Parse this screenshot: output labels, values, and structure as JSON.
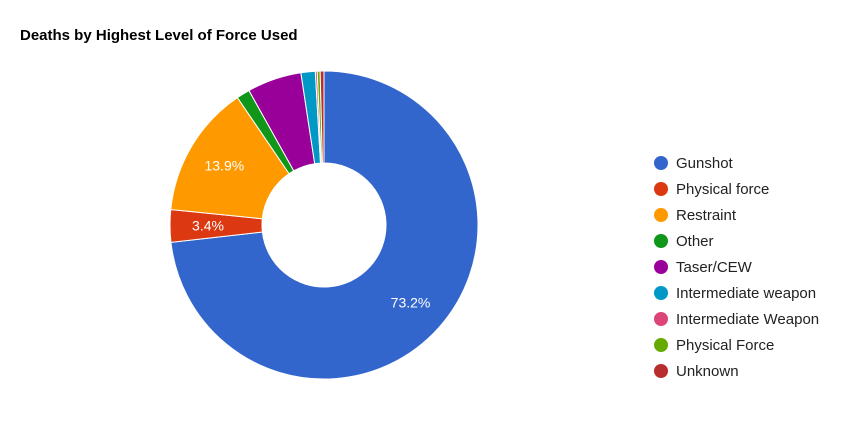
{
  "chart_data": {
    "type": "pie",
    "donut": true,
    "title": "Deaths by Highest Level of Force Used",
    "legend_position": "right",
    "slices": [
      {
        "label": "Gunshot",
        "value": 73.2,
        "color": "#3366cc",
        "show_label": true,
        "display": "73.2%"
      },
      {
        "label": "Physical force",
        "value": 3.4,
        "color": "#dc3912",
        "show_label": true,
        "display": "3.4%"
      },
      {
        "label": "Restraint",
        "value": 13.9,
        "color": "#ff9900",
        "show_label": true,
        "display": "13.9%"
      },
      {
        "label": "Other",
        "value": 1.4,
        "color": "#109618",
        "show_label": false,
        "display": ""
      },
      {
        "label": "Taser/CEW",
        "value": 5.7,
        "color": "#990099",
        "show_label": false,
        "display": ""
      },
      {
        "label": "Intermediate weapon",
        "value": 1.5,
        "color": "#0099c6",
        "show_label": false,
        "display": ""
      },
      {
        "label": "Intermediate Weapon",
        "value": 0.2,
        "color": "#dd4477",
        "show_label": false,
        "display": ""
      },
      {
        "label": "Physical Force",
        "value": 0.3,
        "color": "#66aa00",
        "show_label": false,
        "display": ""
      },
      {
        "label": "Unknown",
        "value": 0.4,
        "color": "#b82e2e",
        "show_label": false,
        "display": ""
      }
    ]
  }
}
